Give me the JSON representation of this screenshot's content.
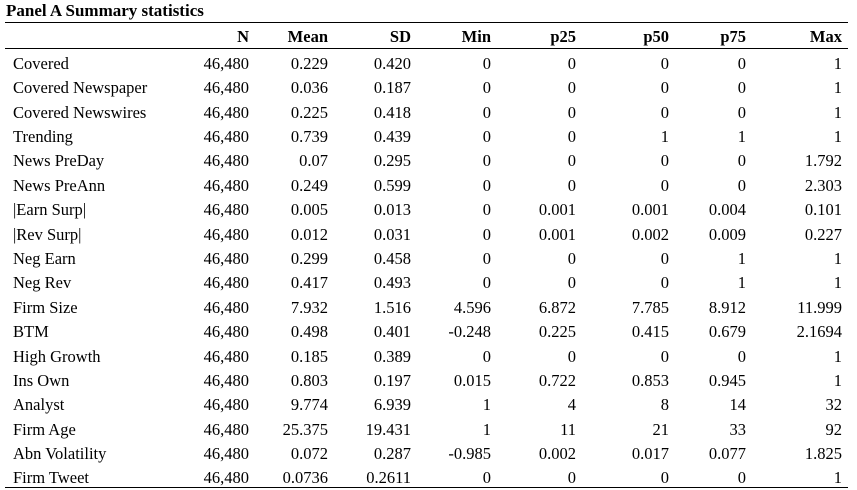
{
  "panel_title": "Panel A Summary statistics",
  "columns": [
    "",
    "N",
    "Mean",
    "SD",
    "Min",
    "p25",
    "p50",
    "p75",
    "Max"
  ],
  "rows": [
    [
      "Covered",
      "46,480",
      "0.229",
      "0.420",
      "0",
      "0",
      "0",
      "0",
      "1"
    ],
    [
      "Covered Newspaper",
      "46,480",
      "0.036",
      "0.187",
      "0",
      "0",
      "0",
      "0",
      "1"
    ],
    [
      "Covered Newswires",
      "46,480",
      "0.225",
      "0.418",
      "0",
      "0",
      "0",
      "0",
      "1"
    ],
    [
      "Trending",
      "46,480",
      "0.739",
      "0.439",
      "0",
      "0",
      "1",
      "1",
      "1"
    ],
    [
      "News PreDay",
      "46,480",
      "0.07",
      "0.295",
      "0",
      "0",
      "0",
      "0",
      "1.792"
    ],
    [
      "News PreAnn",
      "46,480",
      "0.249",
      "0.599",
      "0",
      "0",
      "0",
      "0",
      "2.303"
    ],
    [
      "|Earn Surp|",
      "46,480",
      "0.005",
      "0.013",
      "0",
      "0.001",
      "0.001",
      "0.004",
      "0.101"
    ],
    [
      "|Rev Surp|",
      "46,480",
      "0.012",
      "0.031",
      "0",
      "0.001",
      "0.002",
      "0.009",
      "0.227"
    ],
    [
      "Neg Earn",
      "46,480",
      "0.299",
      "0.458",
      "0",
      "0",
      "0",
      "1",
      "1"
    ],
    [
      "Neg Rev",
      "46,480",
      "0.417",
      "0.493",
      "0",
      "0",
      "0",
      "1",
      "1"
    ],
    [
      "Firm Size",
      "46,480",
      "7.932",
      "1.516",
      "4.596",
      "6.872",
      "7.785",
      "8.912",
      "11.999"
    ],
    [
      "BTM",
      "46,480",
      "0.498",
      "0.401",
      "-0.248",
      "0.225",
      "0.415",
      "0.679",
      "2.1694"
    ],
    [
      "High Growth",
      "46,480",
      "0.185",
      "0.389",
      "0",
      "0",
      "0",
      "0",
      "1"
    ],
    [
      "Ins Own",
      "46,480",
      "0.803",
      "0.197",
      "0.015",
      "0.722",
      "0.853",
      "0.945",
      "1"
    ],
    [
      "Analyst",
      "46,480",
      "9.774",
      "6.939",
      "1",
      "4",
      "8",
      "14",
      "32"
    ],
    [
      "Firm Age",
      "46,480",
      "25.375",
      "19.431",
      "1",
      "11",
      "21",
      "33",
      "92"
    ],
    [
      "Abn Volatility",
      "46,480",
      "0.072",
      "0.287",
      "-0.985",
      "0.002",
      "0.017",
      "0.077",
      "1.825"
    ],
    [
      "Firm Tweet",
      "46,480",
      "0.0736",
      "0.2611",
      "0",
      "0",
      "0",
      "0",
      "1"
    ]
  ]
}
